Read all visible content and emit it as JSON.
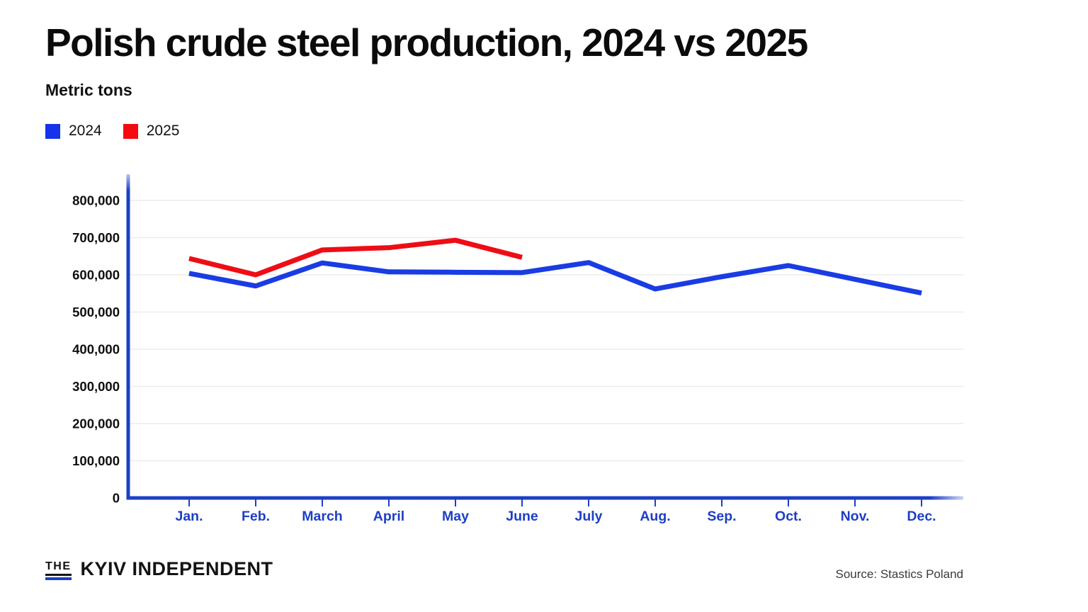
{
  "header": {
    "title": "Polish crude steel production, 2024 vs 2025",
    "subtitle": "Metric tons"
  },
  "colors": {
    "line_2024": "#1a3ce4",
    "line_2025": "#ef0d15",
    "legend_2024": "#1433eb",
    "legend_2025": "#f50a12",
    "axis_blue": "#1d3fc4",
    "gridline": "#ececec",
    "brand_blue": "#1d3fc4"
  },
  "chart_data": {
    "type": "line",
    "title": "Polish crude steel production, 2024 vs 2025",
    "ylabel": "Metric tons",
    "xlabel": "",
    "categories": [
      "Jan.",
      "Feb.",
      "March",
      "April",
      "May",
      "June",
      "July",
      "Aug.",
      "Sep.",
      "Oct.",
      "Nov.",
      "Dec."
    ],
    "series": [
      {
        "name": "2024",
        "color": "#1a3ce4",
        "values": [
          604000,
          570000,
          632000,
          608000,
          607000,
          606000,
          633000,
          562000,
          595000,
          625000,
          588000,
          551000
        ]
      },
      {
        "name": "2025",
        "color": "#ef0d15",
        "values": [
          644000,
          600000,
          667000,
          673000,
          693000,
          647000,
          null,
          null,
          null,
          null,
          null,
          null
        ]
      }
    ],
    "ylim": [
      0,
      800000
    ],
    "ytick_step": 100000,
    "ytick_labels": [
      "0",
      "100,000",
      "200,000",
      "300,000",
      "400,000",
      "500,000",
      "600,000",
      "700,000",
      "800,000"
    ],
    "grid": "horizontal",
    "legend_position": "top-left",
    "axis_color": "#1d3fc4"
  },
  "footer": {
    "logo_the": "THE",
    "logo_name": "KYIV INDEPENDENT",
    "source": "Source: Stastics Poland"
  }
}
